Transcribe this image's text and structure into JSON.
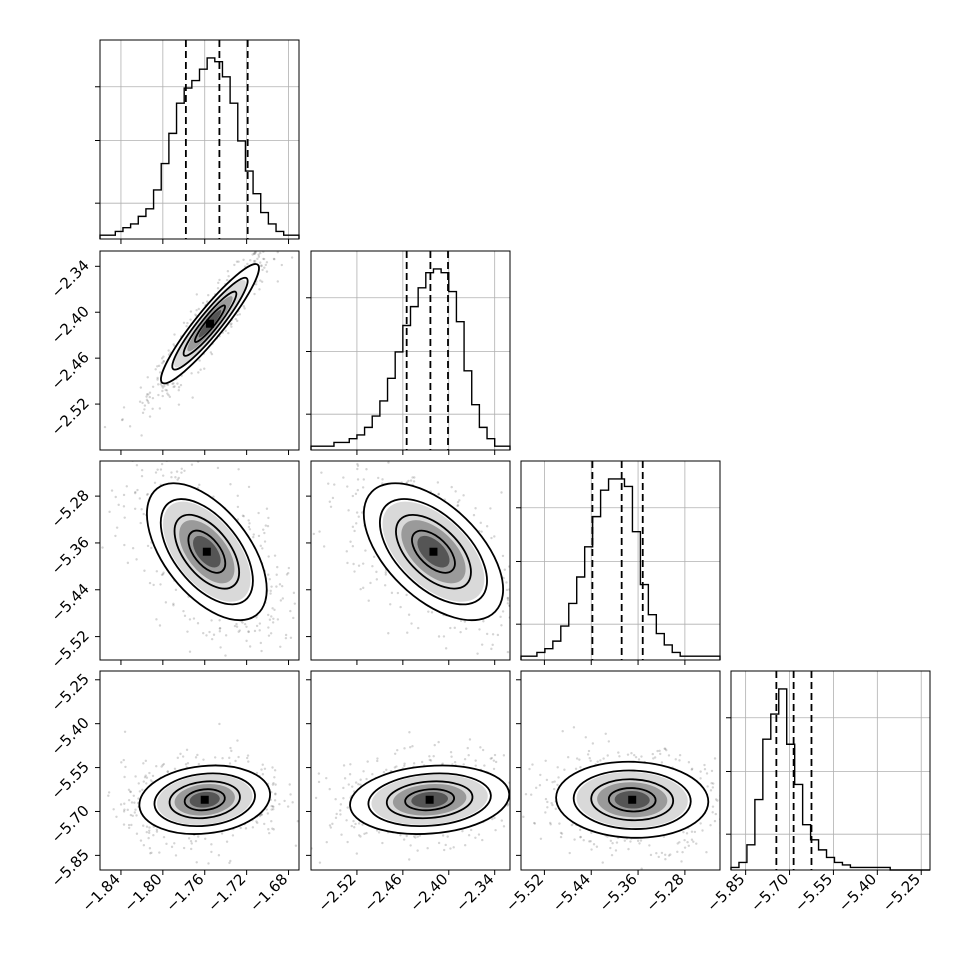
{
  "chart_data": {
    "type": "corner",
    "parameters": 4,
    "grid": true,
    "axes": [
      {
        "index": 0,
        "range": [
          -1.86,
          -1.67
        ],
        "ticks": [
          -1.84,
          -1.8,
          -1.76,
          -1.72,
          -1.68
        ],
        "tick_labels": [
          "−1.84",
          "−1.80",
          "−1.76",
          "−1.72",
          "−1.68"
        ],
        "tick_labels_shown": false
      },
      {
        "index": 1,
        "range": [
          -2.58,
          -2.32
        ],
        "ticks": [
          -2.52,
          -2.46,
          -2.4,
          -2.34
        ],
        "tick_labels": [
          "−2.52",
          "−2.46",
          "−2.40",
          "−2.34"
        ]
      },
      {
        "index": 2,
        "range": [
          -5.56,
          -5.22
        ],
        "ticks": [
          -5.52,
          -5.44,
          -5.36,
          -5.28
        ],
        "tick_labels": [
          "−5.52",
          "−5.44",
          "−5.36",
          "−5.28"
        ]
      },
      {
        "index": 3,
        "range": [
          -5.9,
          -5.22
        ],
        "ticks": [
          -5.85,
          -5.7,
          -5.55,
          -5.4,
          -5.25
        ],
        "tick_labels": [
          "−5.85",
          "−5.70",
          "−5.55",
          "−5.40",
          "−5.25"
        ]
      }
    ],
    "bottom_row_tick_labels": [
      [
        "−1.84",
        "−1.80",
        "−1.76",
        "−1.72",
        "−1.68"
      ],
      [
        "−2.52",
        "−2.46",
        "−2.40",
        "−2.34"
      ],
      [
        "−5.52",
        "−5.44",
        "−5.36",
        "−5.28"
      ],
      [
        "−5.85",
        "−5.70",
        "−5.55",
        "−5.40",
        "−5.25"
      ]
    ],
    "left_col_tick_labels": [
      [],
      [
        "−2.34",
        "−2.40",
        "−2.46",
        "−2.52"
      ],
      [
        "−5.28",
        "−5.36",
        "−5.44",
        "−5.52"
      ],
      [
        "−5.25",
        "−5.40",
        "−5.55",
        "−5.70",
        "−5.85"
      ]
    ],
    "histograms": [
      {
        "param": 0,
        "bins": [
          -1.86,
          -1.67
        ],
        "counts": [
          1,
          1,
          2,
          3,
          4,
          6,
          8,
          13,
          20,
          28,
          36,
          40,
          42,
          45,
          48,
          47,
          43,
          36,
          26,
          18,
          12,
          7,
          4,
          2,
          1,
          1
        ],
        "quantiles": [
          -1.778,
          -1.746,
          -1.719
        ]
      },
      {
        "param": 1,
        "bins": [
          -2.58,
          -2.32
        ],
        "counts": [
          1,
          1,
          1,
          2,
          2,
          3,
          4,
          6,
          9,
          13,
          19,
          26,
          33,
          38,
          43,
          47,
          48,
          47,
          42,
          34,
          21,
          12,
          6,
          3,
          1,
          1
        ],
        "quantiles": [
          -2.455,
          -2.424,
          -2.401
        ]
      },
      {
        "param": 2,
        "bins": [
          -5.56,
          -5.22
        ],
        "counts": [
          1,
          1,
          2,
          3,
          5,
          9,
          15,
          22,
          30,
          38,
          45,
          48,
          48,
          46,
          34,
          20,
          12,
          7,
          4,
          2,
          1,
          1,
          1,
          1,
          1
        ],
        "quantiles": [
          -5.438,
          -5.388,
          -5.352
        ]
      },
      {
        "param": 3,
        "bins": [
          -5.9,
          -5.22
        ],
        "counts": [
          1,
          3,
          10,
          28,
          52,
          62,
          72,
          50,
          34,
          18,
          12,
          8,
          5,
          3,
          2,
          1,
          1,
          1,
          1,
          1,
          0,
          0,
          0,
          0,
          0
        ],
        "quantiles": [
          -5.745,
          -5.686,
          -5.625
        ]
      }
    ],
    "pairs": [
      {
        "x": 0,
        "y": 1,
        "center": [
          -1.755,
          -2.415
        ],
        "sigma": [
          0.018,
          0.03
        ],
        "rho": 0.93
      },
      {
        "x": 0,
        "y": 2,
        "center": [
          -1.758,
          -5.375
        ],
        "sigma": [
          0.022,
          0.045
        ],
        "rho": -0.55
      },
      {
        "x": 1,
        "y": 2,
        "center": [
          -2.42,
          -5.375
        ],
        "sigma": [
          0.035,
          0.045
        ],
        "rho": -0.55
      },
      {
        "x": 0,
        "y": 3,
        "center": [
          -1.76,
          -5.66
        ],
        "sigma": [
          0.024,
          0.045
        ],
        "rho": 0.15
      },
      {
        "x": 1,
        "y": 3,
        "center": [
          -2.425,
          -5.66
        ],
        "sigma": [
          0.04,
          0.045
        ],
        "rho": 0.15
      },
      {
        "x": 2,
        "y": 3,
        "center": [
          -5.37,
          -5.66
        ],
        "sigma": [
          0.05,
          0.05
        ],
        "rho": -0.05
      }
    ]
  }
}
